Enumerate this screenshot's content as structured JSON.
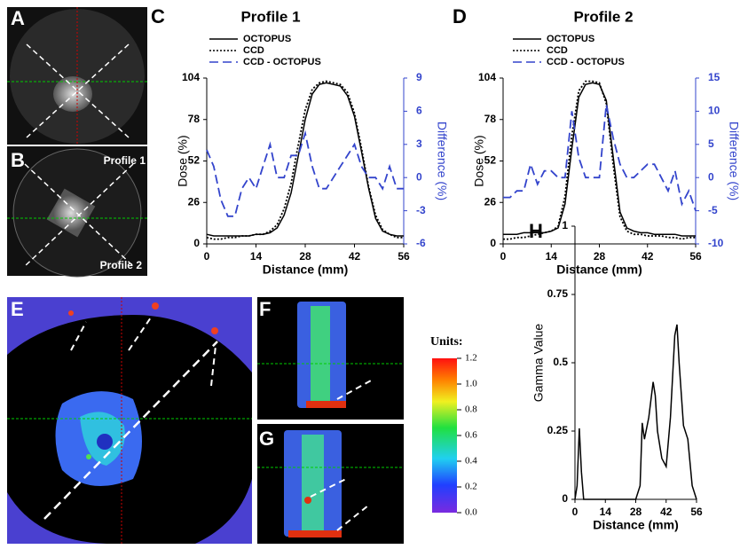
{
  "panel_labels": [
    "A",
    "B",
    "C",
    "D",
    "E",
    "F",
    "G",
    "H"
  ],
  "image_labels": [
    "Profile 1",
    "Profile 2"
  ],
  "colorbar": {
    "title": "Units:",
    "ticks": [
      {
        "value": 0,
        "label": "0.0"
      },
      0.2,
      0.4,
      0.6,
      0.8,
      {
        "value": 1,
        "label": "1.0"
      },
      1.2
    ]
  },
  "chart_data": [
    {
      "type": "line",
      "title": "Profile 1",
      "x_label": "Distance (mm)",
      "y_label": "Dose (%)",
      "y2_label": "Difference (%)",
      "x": [
        0,
        2,
        4,
        6,
        8,
        10,
        12,
        14,
        16,
        18,
        20,
        22,
        24,
        26,
        28,
        30,
        32,
        34,
        36,
        38,
        40,
        42,
        44,
        46,
        48,
        50,
        52,
        54,
        56
      ],
      "xlim": [
        0,
        56
      ],
      "xticks": [
        0,
        14,
        28,
        42,
        56
      ],
      "ylim": [
        0,
        104
      ],
      "yticks": [
        0,
        26,
        52,
        78,
        104
      ],
      "y2lim": [
        -6,
        9
      ],
      "y2ticks": [
        -6,
        -3,
        0,
        3,
        6,
        9
      ],
      "series": [
        {
          "name": "OCTOPUS",
          "color": "#000000",
          "style": "solid",
          "values": [
            6,
            5,
            5,
            5,
            5,
            5,
            5,
            6,
            6,
            7,
            10,
            18,
            32,
            55,
            78,
            94,
            100,
            101,
            100,
            99,
            93,
            80,
            58,
            35,
            16,
            8,
            6,
            5,
            5
          ]
        },
        {
          "name": "CCD",
          "color": "#000000",
          "style": "dotted",
          "values": [
            4,
            3,
            3,
            4,
            4,
            5,
            5,
            6,
            6,
            8,
            12,
            22,
            38,
            62,
            84,
            97,
            101,
            102,
            101,
            100,
            95,
            82,
            60,
            36,
            18,
            9,
            6,
            4,
            4
          ]
        },
        {
          "name": "CCD - OCTOPUS",
          "color": "#3344cc",
          "style": "dashed",
          "axis": "y2",
          "values": [
            2.5,
            1,
            -2,
            -3.5,
            -3.5,
            -1,
            0,
            -1,
            1,
            3,
            0,
            0,
            2,
            2,
            4,
            1,
            -1,
            -1,
            0,
            1,
            2,
            3,
            1,
            0,
            0,
            -1,
            1,
            -1,
            -1
          ]
        }
      ]
    },
    {
      "type": "line",
      "title": "Profile 2",
      "x_label": "Distance (mm)",
      "y_label": "Dose (%)",
      "y2_label": "Difference (%)",
      "x": [
        0,
        2,
        4,
        6,
        8,
        10,
        12,
        14,
        16,
        18,
        20,
        22,
        24,
        26,
        28,
        30,
        32,
        34,
        36,
        38,
        40,
        42,
        44,
        46,
        48,
        50,
        52,
        54,
        56
      ],
      "xlim": [
        0,
        56
      ],
      "xticks": [
        0,
        14,
        28,
        42,
        56
      ],
      "ylim": [
        0,
        104
      ],
      "yticks": [
        0,
        26,
        52,
        78,
        104
      ],
      "y2lim": [
        -10,
        15
      ],
      "y2ticks": [
        -10,
        -5,
        0,
        5,
        10,
        15
      ],
      "series": [
        {
          "name": "OCTOPUS",
          "color": "#000000",
          "style": "solid",
          "values": [
            6,
            6,
            6,
            7,
            7,
            7,
            7,
            8,
            10,
            25,
            60,
            92,
            100,
            101,
            100,
            90,
            55,
            20,
            10,
            8,
            7,
            7,
            6,
            6,
            6,
            6,
            5,
            5,
            5
          ]
        },
        {
          "name": "CCD",
          "color": "#000000",
          "style": "dotted",
          "values": [
            3,
            3,
            4,
            4,
            5,
            6,
            7,
            8,
            11,
            30,
            68,
            96,
            102,
            102,
            101,
            88,
            50,
            17,
            8,
            6,
            6,
            5,
            5,
            5,
            4,
            4,
            3,
            4,
            4
          ]
        },
        {
          "name": "CCD - OCTOPUS",
          "color": "#3344cc",
          "style": "dashed",
          "axis": "y2",
          "values": [
            -3,
            -3,
            -2,
            -2,
            2,
            -1,
            1,
            1,
            0,
            0,
            10,
            3,
            0,
            0,
            0,
            11,
            6,
            2,
            0,
            0,
            1,
            2,
            2,
            0,
            -2,
            1,
            -4,
            -2,
            -5
          ]
        }
      ]
    },
    {
      "type": "line",
      "x_label": "Distance (mm)",
      "y_label": "Gamma Value",
      "x": [
        0,
        1,
        2,
        3,
        4,
        6,
        10,
        14,
        20,
        28,
        30,
        31,
        32,
        34,
        36,
        37,
        38,
        40,
        42,
        44,
        46,
        47,
        48,
        50,
        52,
        54,
        56
      ],
      "xlim": [
        0,
        56
      ],
      "xticks": [
        0,
        14,
        28,
        42,
        56
      ],
      "ylim": [
        0,
        1
      ],
      "yticks": [
        0,
        0.25,
        0.5,
        0.75,
        1
      ],
      "series": [
        {
          "color": "#000000",
          "style": "solid",
          "values": [
            0,
            0.05,
            0.26,
            0.1,
            0,
            0,
            0,
            0,
            0,
            0,
            0.05,
            0.28,
            0.22,
            0.3,
            0.43,
            0.38,
            0.25,
            0.15,
            0.12,
            0.3,
            0.6,
            0.64,
            0.5,
            0.27,
            0.22,
            0.05,
            0
          ]
        }
      ]
    }
  ]
}
